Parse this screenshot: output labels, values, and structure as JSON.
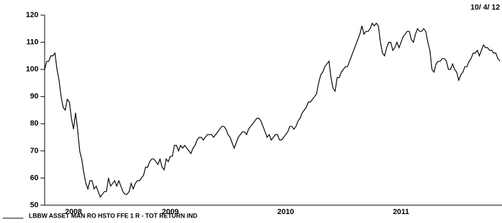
{
  "chart_data": {
    "type": "line",
    "date": "10/ 4/ 12",
    "categories": [
      null,
      null,
      null,
      null,
      null,
      null,
      null,
      null,
      null,
      null,
      null,
      null,
      null,
      null,
      "2008",
      null,
      null,
      null,
      null,
      null,
      null,
      null,
      null,
      null,
      null,
      null,
      null,
      null,
      null,
      null,
      null,
      null,
      null,
      null,
      null,
      null,
      null,
      null,
      null,
      null,
      null,
      null,
      null,
      null,
      null,
      null,
      null,
      null,
      null,
      null,
      null,
      null,
      null,
      null,
      null,
      null,
      null,
      null,
      null,
      null,
      null,
      "2009",
      null,
      null,
      null,
      null,
      null,
      null,
      null,
      null,
      null,
      null,
      null,
      null,
      null,
      null,
      null,
      null,
      null,
      null,
      null,
      null,
      null,
      null,
      null,
      null,
      null,
      null,
      null,
      null,
      null,
      null,
      null,
      null,
      null,
      null,
      null,
      null,
      null,
      null,
      null,
      null,
      null,
      null,
      null,
      null,
      null,
      null,
      null,
      null,
      null,
      null,
      null,
      null,
      null,
      null,
      null,
      "2010",
      null,
      null,
      null,
      null,
      null,
      null,
      null,
      null,
      null,
      null,
      null,
      null,
      null,
      null,
      null,
      null,
      null,
      null,
      null,
      null,
      null,
      null,
      null,
      null,
      null,
      null,
      null,
      null,
      null,
      null,
      null,
      null,
      null,
      null,
      null,
      null,
      null,
      null,
      null,
      null,
      null,
      null,
      null,
      null,
      null,
      null,
      null,
      null,
      null,
      null,
      null,
      null,
      null,
      null,
      null,
      "2011",
      null,
      null,
      null,
      null,
      null,
      null,
      null,
      null,
      null,
      null,
      null,
      null,
      null,
      null,
      null,
      null,
      null,
      null,
      null,
      null,
      null,
      null,
      null,
      null,
      null,
      null,
      null,
      null,
      null,
      null,
      null,
      null,
      null,
      null,
      null,
      null,
      null,
      null,
      null,
      null,
      null,
      null,
      null,
      null,
      null,
      null,
      null,
      null
    ],
    "series": [
      {
        "name": "LBBW ASSET MAN RO HSTO FFE 1 R - TOT RETURN IND",
        "color": "#000000",
        "values": [
          100,
          103,
          103,
          105,
          105,
          106,
          100,
          96,
          90,
          86,
          85,
          89,
          88,
          82,
          78,
          84,
          78,
          70,
          67,
          62,
          58,
          56,
          59,
          59,
          56,
          57,
          55,
          53,
          54,
          55,
          55,
          60,
          57,
          58,
          59,
          57,
          59,
          57,
          55,
          54,
          54,
          55,
          58,
          56,
          58,
          59,
          59,
          60,
          61,
          64,
          64,
          66,
          67,
          67,
          66,
          65,
          67,
          64,
          63,
          67,
          66,
          68,
          68,
          72,
          72,
          70,
          72,
          71,
          72,
          71,
          70,
          69,
          71,
          72,
          74,
          75,
          75,
          74,
          75,
          76,
          76,
          76,
          75,
          76,
          77,
          78,
          79,
          79,
          78,
          76,
          75,
          73,
          71,
          73,
          75,
          76,
          77,
          77,
          76,
          78,
          79,
          80,
          81,
          82,
          82,
          81,
          79,
          77,
          75,
          76,
          74,
          75,
          76,
          76,
          74,
          74,
          75,
          76,
          77,
          79,
          79,
          78,
          79,
          81,
          82,
          84,
          85,
          86,
          88,
          88,
          89,
          90,
          91,
          95,
          98,
          99,
          101,
          102,
          103,
          97,
          93,
          92,
          97,
          97,
          99,
          100,
          101,
          101,
          103,
          105,
          107,
          109,
          111,
          113,
          116,
          113,
          114,
          114,
          115,
          117,
          116,
          117,
          116,
          110,
          106,
          105,
          108,
          110,
          110,
          107,
          108,
          110,
          108,
          110,
          112,
          113,
          114,
          114,
          111,
          110,
          113,
          115,
          114,
          114,
          115,
          114,
          110,
          107,
          100,
          99,
          102,
          103,
          103,
          104,
          104,
          103,
          100,
          100,
          102,
          100,
          99,
          96,
          98,
          99,
          101,
          101,
          103,
          104,
          106,
          106,
          107,
          105,
          107,
          109,
          108,
          108,
          107,
          107,
          106,
          106,
          104,
          103
        ]
      }
    ],
    "ylim": [
      50,
      120
    ],
    "yticks": [
      50,
      60,
      70,
      80,
      90,
      100,
      110,
      120
    ]
  }
}
